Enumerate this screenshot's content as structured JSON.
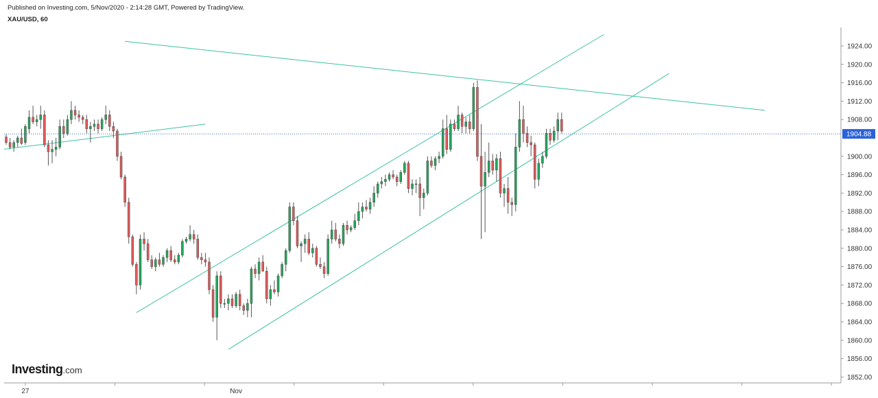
{
  "header": {
    "published": "Published on Investing.com, 5/Nov/2020 - 2:14:28 GMT, Powered by TradingView.",
    "symbol": "XAU/USD, 60"
  },
  "logo": {
    "main": "Investing",
    "suffix": ".com"
  },
  "colors": {
    "up": "#26a65b",
    "down": "#e05a5a",
    "wick": "#555555",
    "trendline": "#3cc2a0",
    "last_price_line": "#2b62d9",
    "price_tag": "#2b62d9",
    "axis": "#999999"
  },
  "chart_data": {
    "type": "candlestick",
    "title": "XAU/USD, 60",
    "x_ticks": [
      {
        "label": "27",
        "index": 5
      },
      {
        "label": "Nov",
        "index": 60
      }
    ],
    "ylim": [
      1850,
      1928
    ],
    "y_ticks": [
      "1924.00",
      "1920.00",
      "1916.00",
      "1912.00",
      "1908.00",
      "1904.00",
      "1900.00",
      "1896.00",
      "1892.00",
      "1888.00",
      "1884.00",
      "1880.00",
      "1876.00",
      "1872.00",
      "1868.00",
      "1864.00",
      "1860.00",
      "1856.00",
      "1852.00"
    ],
    "last_price": 1904.88,
    "last_price_label": "1904.88",
    "candles": [
      [
        1904.2,
        1904.8,
        1902.5,
        1903.0
      ],
      [
        1903.0,
        1904.0,
        1901.5,
        1902.0
      ],
      [
        1902.0,
        1903.5,
        1901.0,
        1903.0
      ],
      [
        1903.0,
        1904.5,
        1902.0,
        1904.0
      ],
      [
        1904.0,
        1906.0,
        1902.5,
        1902.8
      ],
      [
        1903.0,
        1907.0,
        1902.5,
        1906.5
      ],
      [
        1906.0,
        1910.0,
        1905.0,
        1908.5
      ],
      [
        1908.5,
        1911.0,
        1907.0,
        1907.5
      ],
      [
        1907.5,
        1909.0,
        1906.5,
        1908.0
      ],
      [
        1908.0,
        1911.0,
        1906.0,
        1909.0
      ],
      [
        1909.0,
        1910.0,
        1902.0,
        1902.5
      ],
      [
        1902.5,
        1903.5,
        1898.0,
        1901.0
      ],
      [
        1901.0,
        1903.5,
        1898.5,
        1901.5
      ],
      [
        1901.5,
        1904.0,
        1900.0,
        1902.0
      ],
      [
        1902.0,
        1908.0,
        1901.5,
        1906.5
      ],
      [
        1906.5,
        1908.0,
        1904.0,
        1905.0
      ],
      [
        1905.0,
        1909.0,
        1904.5,
        1908.0
      ],
      [
        1908.0,
        1912.0,
        1907.0,
        1910.0
      ],
      [
        1910.0,
        1911.0,
        1908.0,
        1909.0
      ],
      [
        1909.0,
        1910.0,
        1907.5,
        1908.5
      ],
      [
        1908.5,
        1909.0,
        1907.0,
        1908.0
      ],
      [
        1908.0,
        1909.0,
        1905.0,
        1906.0
      ],
      [
        1906.0,
        1907.5,
        1903.0,
        1906.5
      ],
      [
        1906.5,
        1908.0,
        1905.5,
        1907.0
      ],
      [
        1907.0,
        1908.0,
        1905.0,
        1906.0
      ],
      [
        1906.0,
        1908.5,
        1905.5,
        1908.0
      ],
      [
        1908.0,
        1911.0,
        1907.0,
        1909.0
      ],
      [
        1909.0,
        1910.0,
        1905.5,
        1906.5
      ],
      [
        1906.5,
        1907.5,
        1904.0,
        1905.5
      ],
      [
        1905.5,
        1906.0,
        1899.0,
        1900.0
      ],
      [
        1900.0,
        1901.0,
        1895.0,
        1895.5
      ],
      [
        1895.5,
        1896.0,
        1889.0,
        1890.0
      ],
      [
        1890.0,
        1891.0,
        1881.0,
        1882.5
      ],
      [
        1882.5,
        1883.0,
        1876.0,
        1876.5
      ],
      [
        1876.5,
        1877.0,
        1870.0,
        1872.0
      ],
      [
        1872.0,
        1883.0,
        1871.0,
        1882.0
      ],
      [
        1882.0,
        1883.5,
        1879.5,
        1881.0
      ],
      [
        1881.0,
        1882.0,
        1877.0,
        1877.5
      ],
      [
        1877.5,
        1878.5,
        1875.5,
        1876.0
      ],
      [
        1876.0,
        1878.0,
        1875.0,
        1877.5
      ],
      [
        1877.5,
        1879.0,
        1876.0,
        1876.5
      ],
      [
        1876.5,
        1878.5,
        1876.0,
        1878.0
      ],
      [
        1878.0,
        1880.0,
        1877.0,
        1879.5
      ],
      [
        1879.5,
        1880.5,
        1877.0,
        1877.5
      ],
      [
        1877.5,
        1878.5,
        1876.5,
        1877.0
      ],
      [
        1877.0,
        1879.0,
        1876.5,
        1878.5
      ],
      [
        1878.5,
        1882.0,
        1878.0,
        1881.5
      ],
      [
        1881.5,
        1882.5,
        1881.0,
        1882.0
      ],
      [
        1882.0,
        1885.0,
        1881.5,
        1883.0
      ],
      [
        1883.0,
        1884.0,
        1881.0,
        1882.0
      ],
      [
        1882.0,
        1883.0,
        1877.5,
        1878.0
      ],
      [
        1878.0,
        1879.0,
        1876.5,
        1877.5
      ],
      [
        1877.5,
        1879.0,
        1876.0,
        1877.0
      ],
      [
        1877.0,
        1878.0,
        1870.0,
        1871.0
      ],
      [
        1871.0,
        1872.0,
        1864.0,
        1865.0
      ],
      [
        1865.0,
        1875.0,
        1860.0,
        1874.0
      ],
      [
        1874.0,
        1875.0,
        1867.0,
        1868.0
      ],
      [
        1868.0,
        1869.0,
        1867.0,
        1868.0
      ],
      [
        1868.0,
        1870.0,
        1866.5,
        1869.0
      ],
      [
        1869.0,
        1870.0,
        1867.0,
        1867.5
      ],
      [
        1867.5,
        1870.5,
        1867.0,
        1870.0
      ],
      [
        1870.0,
        1871.0,
        1866.5,
        1867.5
      ],
      [
        1867.5,
        1868.0,
        1865.5,
        1866.5
      ],
      [
        1866.5,
        1869.0,
        1865.0,
        1868.0
      ],
      [
        1868.0,
        1876.0,
        1865.0,
        1875.5
      ],
      [
        1875.5,
        1876.5,
        1873.5,
        1874.5
      ],
      [
        1874.5,
        1878.0,
        1873.0,
        1877.0
      ],
      [
        1877.0,
        1878.5,
        1875.0,
        1875.0
      ],
      [
        1875.0,
        1876.0,
        1868.0,
        1869.0
      ],
      [
        1869.0,
        1872.0,
        1867.5,
        1871.0
      ],
      [
        1871.0,
        1873.0,
        1870.0,
        1870.5
      ],
      [
        1870.5,
        1874.5,
        1869.5,
        1874.0
      ],
      [
        1874.0,
        1877.0,
        1873.5,
        1876.5
      ],
      [
        1876.5,
        1880.0,
        1875.0,
        1879.5
      ],
      [
        1879.5,
        1890.0,
        1879.0,
        1889.0
      ],
      [
        1889.0,
        1890.0,
        1885.0,
        1886.0
      ],
      [
        1886.0,
        1887.0,
        1880.0,
        1880.5
      ],
      [
        1880.5,
        1881.5,
        1877.0,
        1881.0
      ],
      [
        1881.0,
        1883.0,
        1879.0,
        1882.0
      ],
      [
        1882.0,
        1883.5,
        1878.5,
        1879.0
      ],
      [
        1879.0,
        1881.0,
        1878.0,
        1880.0
      ],
      [
        1880.0,
        1880.5,
        1876.0,
        1876.5
      ],
      [
        1876.5,
        1878.0,
        1875.5,
        1876.0
      ],
      [
        1876.0,
        1877.0,
        1873.5,
        1874.5
      ],
      [
        1874.5,
        1883.0,
        1874.0,
        1882.0
      ],
      [
        1882.0,
        1886.0,
        1881.0,
        1884.0
      ],
      [
        1884.0,
        1885.5,
        1881.5,
        1882.0
      ],
      [
        1882.0,
        1883.0,
        1880.0,
        1881.0
      ],
      [
        1881.0,
        1885.5,
        1880.5,
        1885.0
      ],
      [
        1885.0,
        1886.0,
        1883.0,
        1884.0
      ],
      [
        1884.0,
        1885.0,
        1883.5,
        1884.5
      ],
      [
        1884.5,
        1887.5,
        1884.0,
        1886.0
      ],
      [
        1886.0,
        1890.0,
        1885.0,
        1888.0
      ],
      [
        1888.0,
        1890.0,
        1886.5,
        1889.0
      ],
      [
        1889.0,
        1890.5,
        1888.0,
        1888.5
      ],
      [
        1888.5,
        1891.0,
        1887.5,
        1890.0
      ],
      [
        1890.0,
        1893.5,
        1889.0,
        1892.0
      ],
      [
        1892.0,
        1894.5,
        1891.0,
        1894.0
      ],
      [
        1894.0,
        1895.5,
        1893.0,
        1894.5
      ],
      [
        1894.5,
        1896.0,
        1893.5,
        1895.0
      ],
      [
        1895.0,
        1896.5,
        1894.5,
        1896.0
      ],
      [
        1896.0,
        1897.0,
        1895.0,
        1895.5
      ],
      [
        1895.5,
        1896.0,
        1893.5,
        1894.5
      ],
      [
        1894.5,
        1897.0,
        1894.0,
        1896.5
      ],
      [
        1896.5,
        1899.0,
        1896.0,
        1898.5
      ],
      [
        1898.5,
        1899.0,
        1892.0,
        1893.0
      ],
      [
        1893.0,
        1895.0,
        1891.5,
        1894.0
      ],
      [
        1894.0,
        1895.0,
        1892.0,
        1894.0
      ],
      [
        1894.0,
        1895.5,
        1887.0,
        1891.0
      ],
      [
        1891.0,
        1893.0,
        1888.5,
        1892.0
      ],
      [
        1892.0,
        1900.0,
        1891.5,
        1899.0
      ],
      [
        1899.0,
        1900.0,
        1897.5,
        1898.0
      ],
      [
        1898.0,
        1900.0,
        1897.0,
        1899.5
      ],
      [
        1899.5,
        1901.0,
        1898.5,
        1900.0
      ],
      [
        1900.0,
        1908.0,
        1899.5,
        1906.0
      ],
      [
        1906.0,
        1909.0,
        1900.5,
        1901.5
      ],
      [
        1901.5,
        1908.0,
        1901.0,
        1907.0
      ],
      [
        1907.0,
        1908.0,
        1905.5,
        1906.0
      ],
      [
        1906.0,
        1911.0,
        1905.5,
        1909.0
      ],
      [
        1909.0,
        1909.5,
        1905.0,
        1906.5
      ],
      [
        1906.5,
        1908.5,
        1905.0,
        1907.5
      ],
      [
        1907.5,
        1909.0,
        1905.0,
        1906.0
      ],
      [
        1906.0,
        1916.0,
        1905.5,
        1915.0
      ],
      [
        1915.0,
        1916.5,
        1899.0,
        1900.0
      ],
      [
        1900.0,
        1907.0,
        1882.0,
        1893.5
      ],
      [
        1893.5,
        1901.0,
        1883.5,
        1896.5
      ],
      [
        1896.5,
        1903.0,
        1895.5,
        1899.0
      ],
      [
        1899.0,
        1900.5,
        1896.0,
        1897.0
      ],
      [
        1897.0,
        1900.5,
        1894.5,
        1899.5
      ],
      [
        1899.5,
        1901.0,
        1891.0,
        1892.0
      ],
      [
        1892.0,
        1894.0,
        1889.0,
        1893.0
      ],
      [
        1893.0,
        1895.5,
        1887.5,
        1890.0
      ],
      [
        1890.0,
        1891.0,
        1887.0,
        1889.5
      ],
      [
        1889.5,
        1905.0,
        1888.0,
        1902.0
      ],
      [
        1902.0,
        1912.0,
        1901.0,
        1908.0
      ],
      [
        1908.0,
        1911.0,
        1903.0,
        1905.0
      ],
      [
        1905.0,
        1906.5,
        1902.0,
        1903.0
      ],
      [
        1903.0,
        1904.5,
        1900.0,
        1902.5
      ],
      [
        1902.5,
        1903.0,
        1893.0,
        1895.0
      ],
      [
        1895.0,
        1899.5,
        1893.5,
        1898.5
      ],
      [
        1898.5,
        1901.0,
        1897.5,
        1900.0
      ],
      [
        1900.0,
        1906.0,
        1899.5,
        1905.0
      ],
      [
        1905.0,
        1906.0,
        1902.5,
        1903.5
      ],
      [
        1903.5,
        1906.5,
        1903.0,
        1905.5
      ],
      [
        1905.5,
        1909.5,
        1903.5,
        1908.0
      ],
      [
        1908.0,
        1909.5,
        1905.0,
        1905.5
      ]
    ],
    "trendlines": [
      {
        "from": [
          -1,
          1901.5
        ],
        "to": [
          52,
          1907.0
        ]
      },
      {
        "from": [
          31,
          1925.0
        ],
        "to": [
          198,
          1910.0
        ]
      },
      {
        "from": [
          34,
          1866.0
        ],
        "to": [
          156,
          1926.5
        ]
      },
      {
        "from": [
          58,
          1858.0
        ],
        "to": [
          173,
          1918.0
        ]
      }
    ]
  }
}
